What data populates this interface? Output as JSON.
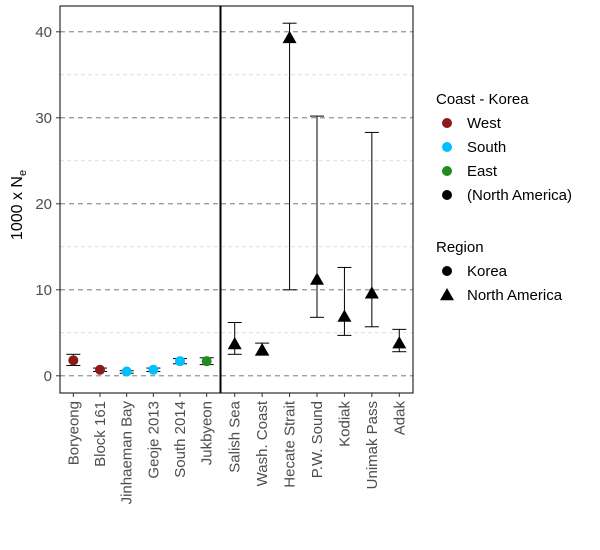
{
  "chart_data": {
    "type": "scatter",
    "title": "",
    "xlabel": "",
    "ylabel": {
      "main": "1000 x N",
      "sub": "e"
    },
    "ylim": [
      -2,
      43
    ],
    "y_ticks": [
      0,
      10,
      20,
      30,
      40
    ],
    "grid": {
      "major": "dashed",
      "minor": "dashed-light"
    },
    "panels": [
      {
        "region": "Korea",
        "points": [
          {
            "label": "Boryeong",
            "y": 1.8,
            "lo": 1.2,
            "hi": 2.5,
            "coast": "West"
          },
          {
            "label": "Block 161",
            "y": 0.7,
            "lo": 0.5,
            "hi": 0.9,
            "coast": "West"
          },
          {
            "label": "Jinhaeman Bay",
            "y": 0.5,
            "lo": 0.3,
            "hi": 0.6,
            "coast": "South"
          },
          {
            "label": "Geoje 2013",
            "y": 0.7,
            "lo": 0.5,
            "hi": 0.9,
            "coast": "South"
          },
          {
            "label": "South 2014",
            "y": 1.7,
            "lo": 1.4,
            "hi": 2.0,
            "coast": "South"
          },
          {
            "label": "Jukbyeon",
            "y": 1.7,
            "lo": 1.3,
            "hi": 2.1,
            "coast": "East"
          }
        ]
      },
      {
        "region": "North America",
        "points": [
          {
            "label": "Salish Sea",
            "y": 3.7,
            "lo": 2.5,
            "hi": 6.2,
            "coast": "(North America)"
          },
          {
            "label": "Wash. Coast",
            "y": 3.0,
            "lo": 2.4,
            "hi": 3.8,
            "coast": "(North America)"
          },
          {
            "label": "Hecate Strait",
            "y": 39.3,
            "lo": 10.0,
            "hi": 41.0,
            "coast": "(North America)"
          },
          {
            "label": "P.W. Sound",
            "y": 11.2,
            "lo": 6.8,
            "hi": 30.2,
            "coast": "(North America)"
          },
          {
            "label": "Kodiak",
            "y": 6.9,
            "lo": 4.7,
            "hi": 12.6,
            "coast": "(North America)"
          },
          {
            "label": "Unimak Pass",
            "y": 9.6,
            "lo": 5.7,
            "hi": 28.3,
            "coast": "(North America)"
          },
          {
            "label": "Adak",
            "y": 3.8,
            "lo": 2.8,
            "hi": 5.4,
            "coast": "(North America)"
          }
        ]
      }
    ],
    "legend": {
      "placement": "right",
      "groups": [
        {
          "title": "Coast - Korea",
          "items": [
            {
              "label": "West",
              "color": "#8B1A1A",
              "shape": "circle"
            },
            {
              "label": "South",
              "color": "#00BFFF",
              "shape": "circle"
            },
            {
              "label": "East",
              "color": "#228B22",
              "shape": "circle"
            },
            {
              "label": "(North America)",
              "color": "#000000",
              "shape": "circle"
            }
          ]
        },
        {
          "title": "Region",
          "items": [
            {
              "label": "Korea",
              "color": "#000000",
              "shape": "circle"
            },
            {
              "label": "North America",
              "color": "#000000",
              "shape": "triangle"
            }
          ]
        }
      ]
    }
  }
}
